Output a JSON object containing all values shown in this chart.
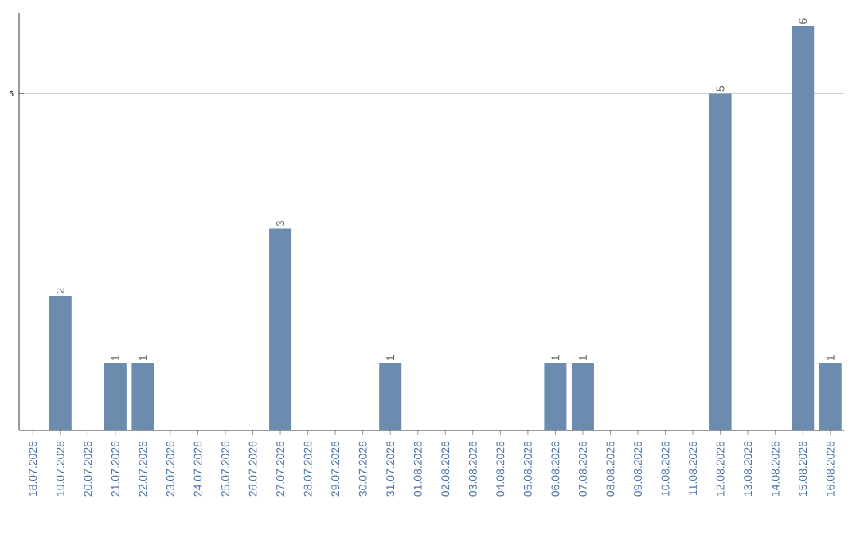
{
  "chart_data": {
    "type": "bar",
    "categories": [
      "18.07.2026",
      "19.07.2026",
      "20.07.2026",
      "21.07.2026",
      "22.07.2026",
      "23.07.2026",
      "24.07.2026",
      "25.07.2026",
      "26.07.2026",
      "27.07.2026",
      "28.07.2026",
      "29.07.2026",
      "30.07.2026",
      "31.07.2026",
      "01.08.2026",
      "02.08.2026",
      "03.08.2026",
      "04.08.2026",
      "05.08.2026",
      "06.08.2026",
      "07.08.2026",
      "08.08.2026",
      "09.08.2026",
      "10.08.2026",
      "11.08.2026",
      "12.08.2026",
      "13.08.2026",
      "14.08.2026",
      "15.08.2026",
      "16.08.2026"
    ],
    "values": [
      0,
      2,
      0,
      1,
      1,
      0,
      0,
      0,
      0,
      3,
      0,
      0,
      0,
      1,
      0,
      0,
      0,
      0,
      0,
      1,
      1,
      0,
      0,
      0,
      0,
      5,
      0,
      0,
      6,
      1
    ],
    "value_labels": [
      null,
      "2",
      null,
      "1",
      "1",
      null,
      null,
      null,
      null,
      "3",
      null,
      null,
      null,
      "1",
      null,
      null,
      null,
      null,
      null,
      "1",
      "1",
      null,
      null,
      null,
      null,
      "5",
      null,
      null,
      "6",
      "1"
    ],
    "color": "#6b8cae",
    "ylim": [
      0,
      6.2
    ],
    "yticks": [
      5
    ],
    "grid": "y"
  }
}
